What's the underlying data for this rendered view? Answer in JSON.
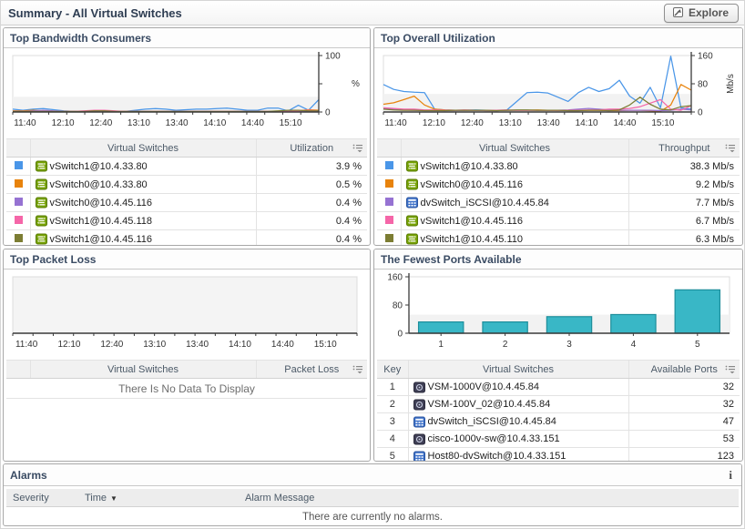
{
  "header": {
    "title": "Summary - All Virtual Switches",
    "explore_label": "Explore"
  },
  "ui": {
    "sort_indicator": "▼",
    "info_glyph": "i"
  },
  "panels": {
    "bandwidth": {
      "title": "Top Bandwidth Consumers",
      "table": {
        "col_name": "Virtual Switches",
        "col_value": "Utilization"
      },
      "rows": [
        {
          "color": "#4a96e8",
          "icon": "vswitch-icon",
          "name": "vSwitch1@10.4.33.80",
          "value": "3.9 %"
        },
        {
          "color": "#e8830c",
          "icon": "vswitch-icon",
          "name": "vSwitch0@10.4.33.80",
          "value": "0.5 %"
        },
        {
          "color": "#9672d2",
          "icon": "vswitch-icon",
          "name": "vSwitch0@10.4.45.116",
          "value": "0.4 %"
        },
        {
          "color": "#f566a8",
          "icon": "vswitch-icon",
          "name": "vSwitch1@10.4.45.118",
          "value": "0.4 %"
        },
        {
          "color": "#7c7d33",
          "icon": "vswitch-icon",
          "name": "vSwitch1@10.4.45.116",
          "value": "0.4 %"
        }
      ]
    },
    "utilization": {
      "title": "Top Overall Utilization",
      "table": {
        "col_name": "Virtual Switches",
        "col_value": "Throughput"
      },
      "rows": [
        {
          "color": "#4a96e8",
          "icon": "vswitch-icon",
          "name": "vSwitch1@10.4.33.80",
          "value": "38.3 Mb/s"
        },
        {
          "color": "#e8830c",
          "icon": "vswitch-icon",
          "name": "vSwitch0@10.4.45.116",
          "value": "9.2 Mb/s"
        },
        {
          "color": "#9672d2",
          "icon": "dvswitch-icon",
          "name": "dvSwitch_iSCSI@10.4.45.84",
          "value": "7.7 Mb/s"
        },
        {
          "color": "#f566a8",
          "icon": "vswitch-icon",
          "name": "vSwitch1@10.4.45.116",
          "value": "6.7 Mb/s"
        },
        {
          "color": "#7c7d33",
          "icon": "vswitch-icon",
          "name": "vSwitch1@10.4.45.110",
          "value": "6.3 Mb/s"
        }
      ]
    },
    "packet_loss": {
      "title": "Top Packet Loss",
      "table": {
        "col_name": "Virtual Switches",
        "col_value": "Packet Loss"
      },
      "no_data": "There Is No Data To Display"
    },
    "ports": {
      "title": "The Fewest Ports Available",
      "table": {
        "col_key": "Key",
        "col_name": "Virtual Switches",
        "col_value": "Available Ports"
      },
      "rows": [
        {
          "key": "1",
          "icon": "cisco-icon",
          "name": "VSM-1000V@10.4.45.84",
          "value": "32"
        },
        {
          "key": "2",
          "icon": "cisco-icon",
          "name": "VSM-100V_02@10.4.45.84",
          "value": "32"
        },
        {
          "key": "3",
          "icon": "dvswitch-icon",
          "name": "dvSwitch_iSCSI@10.4.45.84",
          "value": "47"
        },
        {
          "key": "4",
          "icon": "cisco-icon",
          "name": "cisco-1000v-sw@10.4.33.151",
          "value": "53"
        },
        {
          "key": "5",
          "icon": "dvswitch-icon",
          "name": "Host80-dvSwitch@10.4.33.151",
          "value": "123"
        }
      ]
    }
  },
  "alarms": {
    "title": "Alarms",
    "columns": [
      "Severity",
      "Time",
      "Alarm Message"
    ],
    "empty_message": "There are currently no alarms."
  },
  "chart_data": [
    {
      "id": "bandwidth",
      "type": "line",
      "title": "Top Bandwidth Consumers",
      "xlabel": "",
      "ylabel": "%",
      "ylim": [
        0,
        100
      ],
      "axis_side": "right",
      "band_frac": 0.27,
      "grid": false,
      "legend_position": "table-below",
      "x_tick_labels": [
        "11:40",
        "12:10",
        "12:40",
        "13:10",
        "13:40",
        "14:10",
        "14:40",
        "15:10"
      ],
      "y_ticks": [
        {
          "v": 0,
          "l": "0"
        },
        {
          "v": 50,
          "l": ""
        },
        {
          "v": 100,
          "l": "100"
        }
      ],
      "series": [
        {
          "name": "vSwitch1@10.4.33.80",
          "color": "#4a96e8",
          "values": [
            5,
            3,
            5,
            6,
            4,
            2,
            1,
            1,
            2,
            2,
            1,
            1,
            3,
            5,
            6,
            5,
            3,
            4,
            5,
            5,
            6,
            7,
            5,
            3,
            3,
            7,
            7,
            2,
            12,
            3,
            22
          ]
        },
        {
          "name": "vSwitch0@10.4.33.80",
          "color": "#e8830c",
          "values": [
            2,
            2,
            3,
            2,
            1,
            1,
            1,
            1,
            1,
            1,
            1,
            1,
            1,
            1,
            1,
            1,
            1,
            1,
            1,
            1,
            1,
            1,
            1,
            1,
            1,
            1,
            1,
            1,
            2,
            4,
            3
          ]
        },
        {
          "name": "vSwitch0@10.4.45.116",
          "color": "#9672d2",
          "values": [
            1,
            1,
            2,
            3,
            2,
            1,
            1,
            1,
            1,
            1,
            1,
            1,
            1,
            1,
            1,
            1,
            1,
            1,
            1,
            1,
            1,
            1,
            1,
            1,
            1,
            1,
            1,
            1,
            1,
            2,
            2
          ]
        },
        {
          "name": "vSwitch1@10.4.45.118",
          "color": "#f566a8",
          "values": [
            1,
            1,
            1,
            1,
            1,
            1,
            1,
            2,
            3,
            3,
            2,
            1,
            1,
            1,
            1,
            1,
            1,
            1,
            1,
            1,
            1,
            1,
            1,
            1,
            1,
            1,
            1,
            1,
            2,
            3,
            2
          ]
        },
        {
          "name": "vSwitch1@10.4.45.116",
          "color": "#7c7d33",
          "values": [
            1,
            1,
            1,
            1,
            1,
            1,
            1,
            1,
            2,
            2,
            1,
            1,
            1,
            1,
            1,
            1,
            1,
            1,
            1,
            1,
            1,
            1,
            1,
            1,
            1,
            1,
            2,
            3,
            3,
            2,
            2
          ]
        }
      ]
    },
    {
      "id": "utilization",
      "type": "line",
      "title": "Top Overall Utilization",
      "xlabel": "",
      "ylabel": "Mb/s",
      "ylabel_rotated": true,
      "ylim": [
        0,
        160
      ],
      "axis_side": "right",
      "band_frac": 0.32,
      "grid": false,
      "legend_position": "table-below",
      "x_tick_labels": [
        "11:40",
        "12:10",
        "12:40",
        "13:10",
        "13:40",
        "14:10",
        "14:40",
        "15:10"
      ],
      "y_ticks": [
        {
          "v": 0,
          "l": "0"
        },
        {
          "v": 80,
          "l": "80"
        },
        {
          "v": 160,
          "l": "160"
        }
      ],
      "series": [
        {
          "name": "vSwitch1@10.4.33.80",
          "color": "#4a96e8",
          "values": [
            78,
            64,
            58,
            56,
            55,
            8,
            6,
            5,
            5,
            6,
            5,
            4,
            5,
            30,
            55,
            56,
            54,
            42,
            30,
            55,
            70,
            58,
            66,
            90,
            45,
            25,
            70,
            12,
            158,
            12,
            8
          ]
        },
        {
          "name": "vSwitch0@10.4.45.116",
          "color": "#e8830c",
          "values": [
            22,
            26,
            35,
            45,
            20,
            8,
            6,
            5,
            5,
            5,
            4,
            4,
            5,
            5,
            5,
            6,
            5,
            5,
            4,
            4,
            5,
            5,
            4,
            4,
            5,
            5,
            3,
            2,
            20,
            78,
            62
          ]
        },
        {
          "name": "dvSwitch_iSCSI@10.4.45.84",
          "color": "#9672d2",
          "values": [
            10,
            8,
            6,
            5,
            5,
            5,
            4,
            4,
            5,
            5,
            4,
            4,
            5,
            5,
            5,
            5,
            5,
            5,
            6,
            8,
            10,
            8,
            6,
            5,
            5,
            5,
            5,
            4,
            5,
            8,
            6
          ]
        },
        {
          "name": "vSwitch1@10.4.45.116",
          "color": "#f566a8",
          "values": [
            12,
            10,
            8,
            8,
            6,
            6,
            5,
            5,
            6,
            5,
            5,
            5,
            6,
            5,
            5,
            5,
            5,
            4,
            5,
            5,
            6,
            6,
            8,
            8,
            10,
            15,
            25,
            35,
            8,
            5,
            18
          ]
        },
        {
          "name": "vSwitch1@10.4.45.110",
          "color": "#7c7d33",
          "values": [
            8,
            6,
            5,
            5,
            4,
            4,
            4,
            5,
            5,
            5,
            5,
            4,
            5,
            6,
            6,
            5,
            5,
            5,
            4,
            4,
            5,
            5,
            4,
            6,
            20,
            42,
            22,
            8,
            6,
            15,
            18
          ]
        }
      ]
    },
    {
      "id": "packet_loss",
      "type": "line",
      "title": "Top Packet Loss",
      "xlabel": "",
      "ylabel": "",
      "ylim": [
        0,
        1
      ],
      "axis_side": "none",
      "plot_fill": "#f4f4f4",
      "grid": false,
      "x_tick_labels": [
        "11:40",
        "12:10",
        "12:40",
        "13:10",
        "13:40",
        "14:10",
        "14:40",
        "15:10"
      ],
      "y_ticks": [],
      "series": [],
      "note": "no data"
    },
    {
      "id": "ports",
      "type": "bar",
      "title": "The Fewest Ports Available",
      "xlabel": "",
      "ylabel": "",
      "ylim": [
        0,
        160
      ],
      "axis_side": "left",
      "band_frac": 0.33,
      "grid": false,
      "bar_color": "#39b7c6",
      "bar_stroke": "#1d8e9b",
      "categories": [
        "1",
        "2",
        "3",
        "4",
        "5"
      ],
      "values": [
        32,
        32,
        47,
        53,
        123
      ],
      "y_ticks": [
        {
          "v": 0,
          "l": "0"
        },
        {
          "v": 80,
          "l": "80"
        },
        {
          "v": 160,
          "l": "160"
        }
      ]
    }
  ]
}
